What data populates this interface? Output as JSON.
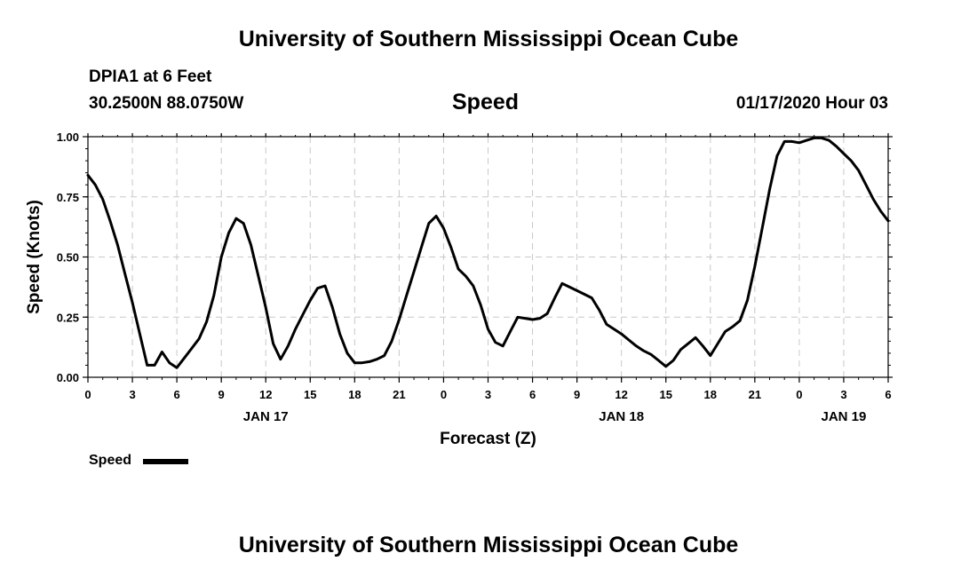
{
  "header": {
    "title_top": "University of Southern Mississippi Ocean Cube",
    "station": "DPIA1 at 6 Feet",
    "coords": "30.2500N 88.0750W",
    "timestamp": "01/17/2020 Hour 03",
    "title_bottom": "University of Southern Mississippi Ocean Cube"
  },
  "legend": {
    "label": "Speed"
  },
  "chart_data": {
    "type": "line",
    "title": "Speed",
    "xlabel": "Forecast (Z)",
    "ylabel": "Speed (Knots)",
    "x_unit": "hours from 01/17 00Z",
    "xlim": [
      0,
      54
    ],
    "ylim": [
      0,
      1
    ],
    "yticks": [
      0,
      0.25,
      0.5,
      0.75,
      1
    ],
    "ytick_labels": [
      "0.00",
      "0.25",
      "0.50",
      "0.75",
      "1.00"
    ],
    "xticks": [
      0,
      3,
      6,
      9,
      12,
      15,
      18,
      21,
      24,
      27,
      30,
      33,
      36,
      39,
      42,
      45,
      48,
      51,
      54
    ],
    "xtick_labels": [
      "0",
      "3",
      "6",
      "9",
      "12",
      "15",
      "18",
      "21",
      "0",
      "3",
      "6",
      "9",
      "12",
      "15",
      "18",
      "21",
      "0",
      "3",
      "6"
    ],
    "date_labels": [
      {
        "x": 12,
        "label": "JAN 17"
      },
      {
        "x": 36,
        "label": "JAN 18"
      },
      {
        "x": 51,
        "label": "JAN 19"
      }
    ],
    "grid": true,
    "legend_position": "bottom-left",
    "series": [
      {
        "name": "Speed",
        "color": "#000000",
        "points": [
          [
            0,
            0.84
          ],
          [
            0.5,
            0.8
          ],
          [
            1,
            0.74
          ],
          [
            1.5,
            0.65
          ],
          [
            2,
            0.55
          ],
          [
            2.5,
            0.43
          ],
          [
            3,
            0.31
          ],
          [
            3.5,
            0.18
          ],
          [
            4,
            0.05
          ],
          [
            4.5,
            0.05
          ],
          [
            5,
            0.105
          ],
          [
            5.5,
            0.06
          ],
          [
            6,
            0.04
          ],
          [
            6.5,
            0.08
          ],
          [
            7,
            0.12
          ],
          [
            7.5,
            0.16
          ],
          [
            8,
            0.23
          ],
          [
            8.5,
            0.34
          ],
          [
            9,
            0.5
          ],
          [
            9.5,
            0.6
          ],
          [
            10,
            0.66
          ],
          [
            10.5,
            0.64
          ],
          [
            11,
            0.55
          ],
          [
            11.5,
            0.42
          ],
          [
            12,
            0.29
          ],
          [
            12.5,
            0.14
          ],
          [
            13,
            0.075
          ],
          [
            13.5,
            0.13
          ],
          [
            14,
            0.2
          ],
          [
            14.5,
            0.26
          ],
          [
            15,
            0.32
          ],
          [
            15.5,
            0.37
          ],
          [
            16,
            0.38
          ],
          [
            16.5,
            0.29
          ],
          [
            17,
            0.18
          ],
          [
            17.5,
            0.1
          ],
          [
            18,
            0.06
          ],
          [
            18.5,
            0.06
          ],
          [
            19,
            0.065
          ],
          [
            19.5,
            0.075
          ],
          [
            20,
            0.09
          ],
          [
            20.5,
            0.15
          ],
          [
            21,
            0.24
          ],
          [
            21.5,
            0.34
          ],
          [
            22,
            0.44
          ],
          [
            22.5,
            0.54
          ],
          [
            23,
            0.64
          ],
          [
            23.5,
            0.67
          ],
          [
            24,
            0.62
          ],
          [
            24.5,
            0.54
          ],
          [
            25,
            0.45
          ],
          [
            25.5,
            0.42
          ],
          [
            26,
            0.38
          ],
          [
            26.5,
            0.3
          ],
          [
            27,
            0.2
          ],
          [
            27.5,
            0.145
          ],
          [
            28,
            0.13
          ],
          [
            28.5,
            0.19
          ],
          [
            29,
            0.25
          ],
          [
            29.5,
            0.245
          ],
          [
            30,
            0.24
          ],
          [
            30.5,
            0.245
          ],
          [
            31,
            0.265
          ],
          [
            31.5,
            0.33
          ],
          [
            32,
            0.39
          ],
          [
            32.5,
            0.375
          ],
          [
            33,
            0.36
          ],
          [
            33.5,
            0.345
          ],
          [
            34,
            0.33
          ],
          [
            34.5,
            0.28
          ],
          [
            35,
            0.22
          ],
          [
            35.5,
            0.2
          ],
          [
            36,
            0.18
          ],
          [
            36.5,
            0.155
          ],
          [
            37,
            0.13
          ],
          [
            37.5,
            0.11
          ],
          [
            38,
            0.095
          ],
          [
            38.5,
            0.07
          ],
          [
            39,
            0.045
          ],
          [
            39.5,
            0.07
          ],
          [
            40,
            0.115
          ],
          [
            40.5,
            0.14
          ],
          [
            41,
            0.165
          ],
          [
            41.5,
            0.13
          ],
          [
            42,
            0.09
          ],
          [
            42.5,
            0.14
          ],
          [
            43,
            0.19
          ],
          [
            43.5,
            0.21
          ],
          [
            44,
            0.235
          ],
          [
            44.5,
            0.32
          ],
          [
            45,
            0.46
          ],
          [
            45.5,
            0.62
          ],
          [
            46,
            0.78
          ],
          [
            46.5,
            0.92
          ],
          [
            47,
            0.98
          ],
          [
            47.5,
            0.98
          ],
          [
            48,
            0.975
          ],
          [
            48.5,
            0.985
          ],
          [
            49,
            0.995
          ],
          [
            49.5,
            0.995
          ],
          [
            50,
            0.985
          ],
          [
            50.5,
            0.96
          ],
          [
            51,
            0.93
          ],
          [
            51.5,
            0.9
          ],
          [
            52,
            0.86
          ],
          [
            52.5,
            0.8
          ],
          [
            53,
            0.74
          ],
          [
            53.5,
            0.69
          ],
          [
            54,
            0.65
          ]
        ]
      }
    ]
  }
}
